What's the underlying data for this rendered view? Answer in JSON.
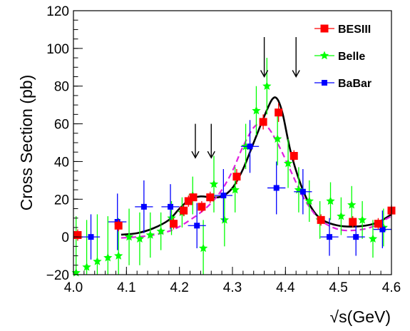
{
  "chart_data": {
    "type": "scatter",
    "title": "",
    "xlabel": "√s(GeV)",
    "ylabel": "Cross Section (pb)",
    "xlim": [
      4.0,
      4.6
    ],
    "ylim": [
      -20,
      120
    ],
    "x_ticks": [
      4.0,
      4.1,
      4.2,
      4.3,
      4.4,
      4.5,
      4.6
    ],
    "x_tick_labels": [
      "4.0",
      "4.1",
      "4.2",
      "4.3",
      "4.4",
      "4.5",
      "4.6"
    ],
    "y_ticks": [
      -20,
      0,
      20,
      40,
      60,
      80,
      100,
      120
    ],
    "y_tick_labels": [
      "−20",
      "0",
      "20",
      "40",
      "60",
      "80",
      "100",
      "120"
    ],
    "legend_position": "top-right",
    "series": [
      {
        "name": "BESIII",
        "marker": "square",
        "color": "#ff0000",
        "points": [
          {
            "x": 4.008,
            "y": 1,
            "yerr": 3
          },
          {
            "x": 4.085,
            "y": 6,
            "yerr": 3
          },
          {
            "x": 4.189,
            "y": 7,
            "yerr": 3
          },
          {
            "x": 4.208,
            "y": 14,
            "yerr": 3
          },
          {
            "x": 4.217,
            "y": 19,
            "yerr": 3
          },
          {
            "x": 4.226,
            "y": 21,
            "yerr": 2
          },
          {
            "x": 4.242,
            "y": 16,
            "yerr": 3
          },
          {
            "x": 4.258,
            "y": 21,
            "yerr": 3
          },
          {
            "x": 4.308,
            "y": 32,
            "yerr": 4
          },
          {
            "x": 4.358,
            "y": 61,
            "yerr": 4
          },
          {
            "x": 4.387,
            "y": 66,
            "yerr": 5
          },
          {
            "x": 4.416,
            "y": 43,
            "yerr": 3
          },
          {
            "x": 4.467,
            "y": 9,
            "yerr": 3
          },
          {
            "x": 4.527,
            "y": 8,
            "yerr": 3
          },
          {
            "x": 4.575,
            "y": 7,
            "yerr": 3
          },
          {
            "x": 4.6,
            "y": 14,
            "yerr": 3
          }
        ]
      },
      {
        "name": "Belle",
        "marker": "star",
        "color": "#00ff00",
        "points": [
          {
            "x": 4.005,
            "y": -19,
            "yerr": 30
          },
          {
            "x": 4.025,
            "y": -16,
            "yerr": 25
          },
          {
            "x": 4.045,
            "y": -13,
            "yerr": 25
          },
          {
            "x": 4.065,
            "y": -11,
            "yerr": 22
          },
          {
            "x": 4.085,
            "y": -10,
            "yerr": 20
          },
          {
            "x": 4.105,
            "y": 0,
            "yerr": 15
          },
          {
            "x": 4.125,
            "y": -1,
            "yerr": 14
          },
          {
            "x": 4.145,
            "y": 1,
            "yerr": 12
          },
          {
            "x": 4.165,
            "y": 3,
            "yerr": 10
          },
          {
            "x": 4.185,
            "y": 10,
            "yerr": 9
          },
          {
            "x": 4.205,
            "y": 13,
            "yerr": 8
          },
          {
            "x": 4.225,
            "y": 22,
            "yerr": 10
          },
          {
            "x": 4.245,
            "y": -6,
            "yerr": 15
          },
          {
            "x": 4.265,
            "y": 28,
            "yerr": 15
          },
          {
            "x": 4.285,
            "y": 9,
            "yerr": 14
          },
          {
            "x": 4.305,
            "y": 25,
            "yerr": 12
          },
          {
            "x": 4.325,
            "y": 48,
            "yerr": 12
          },
          {
            "x": 4.345,
            "y": 67,
            "yerr": 13
          },
          {
            "x": 4.365,
            "y": 80,
            "yerr": 15
          },
          {
            "x": 4.385,
            "y": 52,
            "yerr": 14
          },
          {
            "x": 4.405,
            "y": 39,
            "yerr": 13
          },
          {
            "x": 4.425,
            "y": 25,
            "yerr": 12
          },
          {
            "x": 4.445,
            "y": 19,
            "yerr": 11
          },
          {
            "x": 4.465,
            "y": 9,
            "yerr": 10
          },
          {
            "x": 4.485,
            "y": 19,
            "yerr": 10
          },
          {
            "x": 4.505,
            "y": 11,
            "yerr": 10
          },
          {
            "x": 4.525,
            "y": 17,
            "yerr": 10
          },
          {
            "x": 4.545,
            "y": 9,
            "yerr": 10
          },
          {
            "x": 4.565,
            "y": -1,
            "yerr": 10
          },
          {
            "x": 4.585,
            "y": 5,
            "yerr": 10
          }
        ]
      },
      {
        "name": "BaBar",
        "marker": "square",
        "color": "#0000ff",
        "points": [
          {
            "x": 4.033,
            "y": 0,
            "yerr": 12,
            "xerr": 0.017
          },
          {
            "x": 4.083,
            "y": 8,
            "yerr": 15,
            "xerr": 0.017
          },
          {
            "x": 4.133,
            "y": 16,
            "yerr": 14,
            "xerr": 0.017
          },
          {
            "x": 4.183,
            "y": 16,
            "yerr": 12,
            "xerr": 0.017
          },
          {
            "x": 4.233,
            "y": 6,
            "yerr": 12,
            "xerr": 0.017
          },
          {
            "x": 4.283,
            "y": 22,
            "yerr": 14,
            "xerr": 0.017
          },
          {
            "x": 4.333,
            "y": 48,
            "yerr": 14,
            "xerr": 0.017
          },
          {
            "x": 4.383,
            "y": 26,
            "yerr": 14,
            "xerr": 0.017
          },
          {
            "x": 4.433,
            "y": 24,
            "yerr": 12,
            "xerr": 0.017
          },
          {
            "x": 4.483,
            "y": 0,
            "yerr": 10,
            "xerr": 0.017
          },
          {
            "x": 4.533,
            "y": 0,
            "yerr": 10,
            "xerr": 0.017
          },
          {
            "x": 4.583,
            "y": 4,
            "yerr": 10,
            "xerr": 0.017
          }
        ]
      }
    ],
    "fit_curves": [
      {
        "style": "solid",
        "color": "#000000",
        "points": [
          [
            4.09,
            1.2
          ],
          [
            4.12,
            2.0
          ],
          [
            4.15,
            4.5
          ],
          [
            4.18,
            9
          ],
          [
            4.2,
            15
          ],
          [
            4.22,
            20
          ],
          [
            4.24,
            21.5
          ],
          [
            4.26,
            21
          ],
          [
            4.28,
            21.5
          ],
          [
            4.3,
            26
          ],
          [
            4.32,
            36
          ],
          [
            4.34,
            50
          ],
          [
            4.36,
            64
          ],
          [
            4.375,
            73
          ],
          [
            4.385,
            73
          ],
          [
            4.395,
            65
          ],
          [
            4.41,
            45
          ],
          [
            4.43,
            27
          ],
          [
            4.45,
            15
          ],
          [
            4.47,
            9
          ],
          [
            4.5,
            6
          ],
          [
            4.53,
            5.5
          ],
          [
            4.56,
            6.5
          ],
          [
            4.58,
            8.5
          ],
          [
            4.6,
            12
          ]
        ]
      },
      {
        "style": "dashed",
        "color": "#e020e0",
        "points": [
          [
            4.09,
            -0.5
          ],
          [
            4.12,
            0
          ],
          [
            4.15,
            1
          ],
          [
            4.18,
            3
          ],
          [
            4.2,
            5.5
          ],
          [
            4.22,
            9
          ],
          [
            4.24,
            13
          ],
          [
            4.26,
            18
          ],
          [
            4.28,
            25
          ],
          [
            4.3,
            35
          ],
          [
            4.32,
            48
          ],
          [
            4.34,
            58
          ],
          [
            4.355,
            60
          ],
          [
            4.37,
            57
          ],
          [
            4.39,
            47
          ],
          [
            4.41,
            35
          ],
          [
            4.43,
            23
          ],
          [
            4.45,
            14
          ],
          [
            4.47,
            8
          ],
          [
            4.5,
            4
          ],
          [
            4.53,
            3.5
          ],
          [
            4.56,
            5
          ],
          [
            4.58,
            8
          ],
          [
            4.6,
            11
          ]
        ]
      }
    ],
    "annotations": [
      {
        "type": "arrow",
        "x": 4.23,
        "y_top": 60,
        "y_bottom": 42
      },
      {
        "type": "arrow",
        "x": 4.26,
        "y_top": 60,
        "y_bottom": 42
      },
      {
        "type": "arrow",
        "x": 4.36,
        "y_top": 106,
        "y_bottom": 85
      },
      {
        "type": "arrow",
        "x": 4.42,
        "y_top": 106,
        "y_bottom": 85
      }
    ]
  }
}
